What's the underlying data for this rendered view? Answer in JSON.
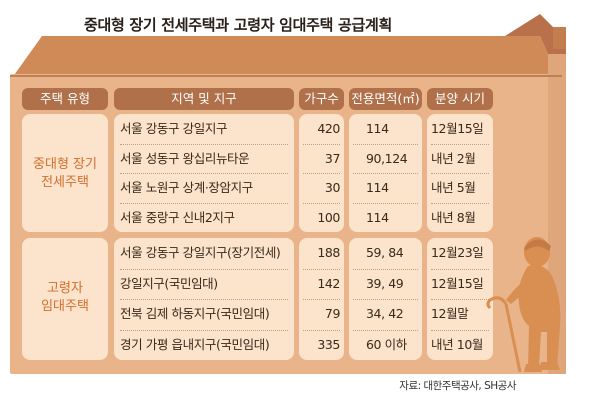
{
  "title": "중대형 장기 전세주택과 고령자 임대주택 공급계획",
  "headers": [
    "주택 유형",
    "지역 및 지구",
    "가구수",
    "전용면적(㎡)",
    "분양 시기"
  ],
  "groups": [
    {
      "type": "중대형 장기\n전세주택",
      "rows": [
        [
          "서울 강동구 강일지구",
          "420",
          "114",
          "12월15일"
        ],
        [
          "서울 성동구 왕십리뉴타운",
          "37",
          "90,124",
          "내년 2월"
        ],
        [
          "서울 노원구 상계·장암지구",
          "30",
          "114",
          "내년 5월"
        ],
        [
          "서울 중랑구 신내2지구",
          "100",
          "114",
          "내년 8월"
        ]
      ]
    },
    {
      "type": "고령자\n임대주택",
      "rows": [
        [
          "서울 강동구 강일지구(장기전세)",
          "188",
          "59, 84",
          "12월23일"
        ],
        [
          "강일지구(국민임대)",
          "142",
          "39, 49",
          "12월15일"
        ],
        [
          "전북 김제 하동지구(국민임대)",
          "79",
          "34, 42",
          "12월말"
        ],
        [
          "경기 가평 읍내지구(국민임대)",
          "335",
          "60 이하",
          "내년 10월"
        ]
      ]
    }
  ],
  "source": "자료: 대한주택공사, SH공사",
  "colors": {
    "roof": "#cf8a58",
    "wall": "#eab48a",
    "header": "#b0704a",
    "cell_box": "#fbe3cc",
    "type_text": "#d26f2c",
    "figure": "#d98e52"
  }
}
